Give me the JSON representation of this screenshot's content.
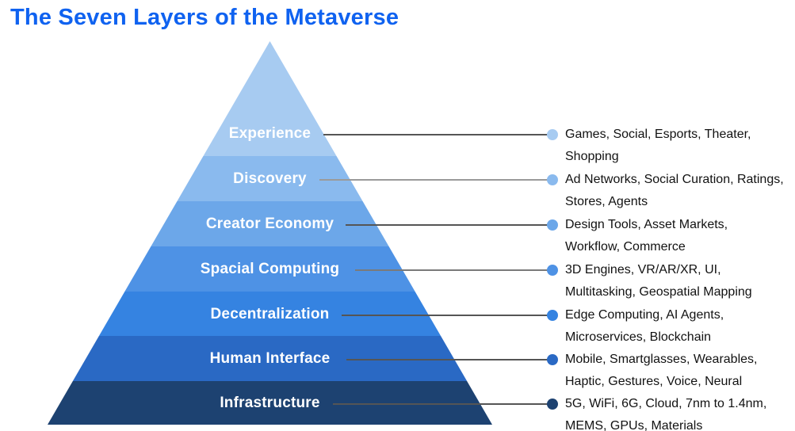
{
  "title": "The Seven Layers of the Metaverse",
  "title_color": "#0F62F0",
  "line_color": "#555555",
  "layers": [
    {
      "label": "Experience",
      "color": "#A7CBF1",
      "desc_line1": "Games, Social, Esports, Theater,",
      "desc_line2": "Shopping"
    },
    {
      "label": "Discovery",
      "color": "#8ABAEE",
      "desc_line1": "Ad Networks, Social Curation, Ratings,",
      "desc_line2": "Stores, Agents"
    },
    {
      "label": "Creator Economy",
      "color": "#6CA7E9",
      "desc_line1": "Design Tools, Asset Markets,",
      "desc_line2": "Workflow, Commerce"
    },
    {
      "label": "Spacial Computing",
      "color": "#4E92E5",
      "desc_line1": "3D Engines, VR/AR/XR, UI,",
      "desc_line2": "Multitasking, Geospatial Mapping"
    },
    {
      "label": "Decentralization",
      "color": "#3583E1",
      "desc_line1": "Edge Computing, AI Agents,",
      "desc_line2": "Microservices, Blockchain"
    },
    {
      "label": "Human Interface",
      "color": "#2A69C4",
      "desc_line1": "Mobile, Smartglasses, Wearables,",
      "desc_line2": "Haptic, Gestures, Voice, Neural"
    },
    {
      "label": "Infrastructure",
      "color": "#1D4271",
      "desc_line1": "5G, WiFi, 6G, Cloud, 7nm to 1.4nm,",
      "desc_line2": "MEMS, GPUs, Materials"
    }
  ]
}
